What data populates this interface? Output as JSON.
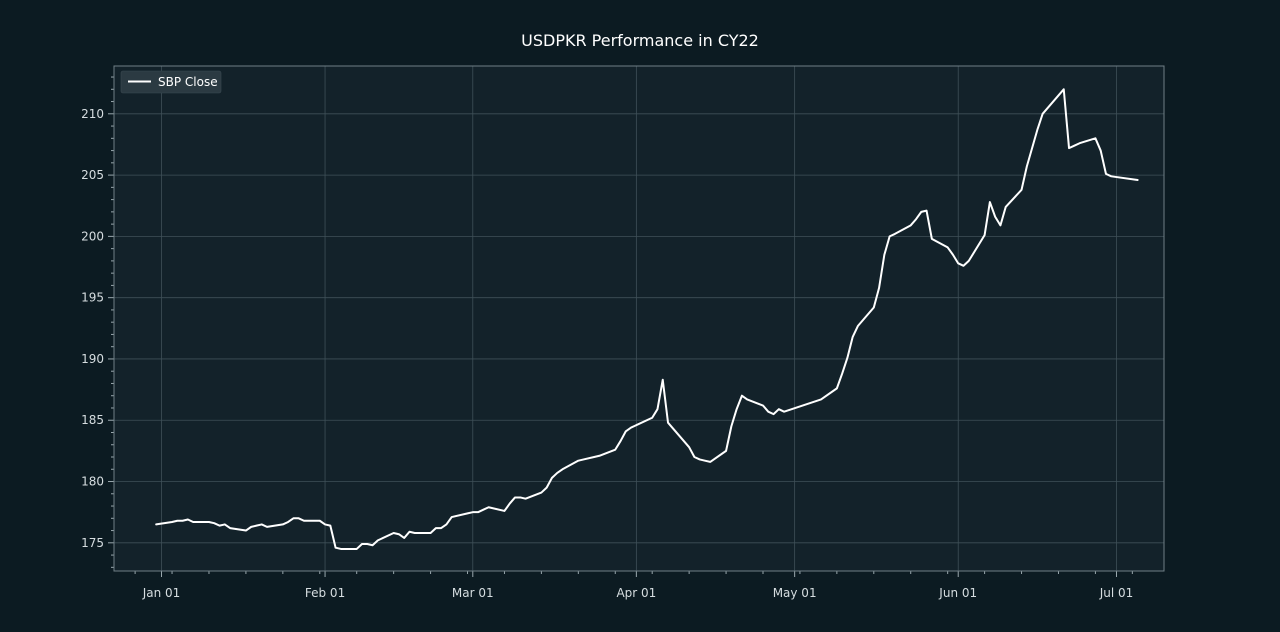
{
  "chart_data": {
    "type": "line",
    "title": "USDPKR Performance in CY22",
    "xlabel": "",
    "ylabel": "",
    "ylim": [
      172.7,
      213.9
    ],
    "x_range": [
      "2021-12-23",
      "2022-07-10"
    ],
    "grid": true,
    "legend_position": "top-left",
    "x_ticks": [
      {
        "date": "2022-01-01",
        "label": "Jan 01"
      },
      {
        "date": "2022-02-01",
        "label": "Feb 01"
      },
      {
        "date": "2022-03-01",
        "label": "Mar 01"
      },
      {
        "date": "2022-04-01",
        "label": "Apr 01"
      },
      {
        "date": "2022-05-01",
        "label": "May 01"
      },
      {
        "date": "2022-06-01",
        "label": "Jun 01"
      },
      {
        "date": "2022-07-01",
        "label": "Jul 01"
      }
    ],
    "y_ticks": [
      175,
      180,
      185,
      190,
      195,
      200,
      205,
      210
    ],
    "series": [
      {
        "name": "SBP Close",
        "color": "#ffffff",
        "x": [
          "2021-12-31",
          "2022-01-03",
          "2022-01-04",
          "2022-01-05",
          "2022-01-06",
          "2022-01-07",
          "2022-01-10",
          "2022-01-11",
          "2022-01-12",
          "2022-01-13",
          "2022-01-14",
          "2022-01-17",
          "2022-01-18",
          "2022-01-19",
          "2022-01-20",
          "2022-01-21",
          "2022-01-24",
          "2022-01-25",
          "2022-01-26",
          "2022-01-27",
          "2022-01-28",
          "2022-01-31",
          "2022-02-01",
          "2022-02-02",
          "2022-02-03",
          "2022-02-04",
          "2022-02-07",
          "2022-02-08",
          "2022-02-09",
          "2022-02-10",
          "2022-02-11",
          "2022-02-14",
          "2022-02-15",
          "2022-02-16",
          "2022-02-17",
          "2022-02-18",
          "2022-02-21",
          "2022-02-22",
          "2022-02-23",
          "2022-02-24",
          "2022-02-25",
          "2022-02-28",
          "2022-03-01",
          "2022-03-02",
          "2022-03-03",
          "2022-03-04",
          "2022-03-07",
          "2022-03-08",
          "2022-03-09",
          "2022-03-10",
          "2022-03-11",
          "2022-03-14",
          "2022-03-15",
          "2022-03-16",
          "2022-03-17",
          "2022-03-18",
          "2022-03-21",
          "2022-03-22",
          "2022-03-24",
          "2022-03-25",
          "2022-03-28",
          "2022-03-29",
          "2022-03-30",
          "2022-03-31",
          "2022-04-04",
          "2022-04-05",
          "2022-04-06",
          "2022-04-07",
          "2022-04-08",
          "2022-04-11",
          "2022-04-12",
          "2022-04-13",
          "2022-04-14",
          "2022-04-15",
          "2022-04-18",
          "2022-04-19",
          "2022-04-20",
          "2022-04-21",
          "2022-04-22",
          "2022-04-25",
          "2022-04-26",
          "2022-04-27",
          "2022-04-28",
          "2022-04-29",
          "2022-05-06",
          "2022-05-09",
          "2022-05-10",
          "2022-05-11",
          "2022-05-12",
          "2022-05-13",
          "2022-05-16",
          "2022-05-17",
          "2022-05-18",
          "2022-05-19",
          "2022-05-20",
          "2022-05-23",
          "2022-05-24",
          "2022-05-25",
          "2022-05-26",
          "2022-05-27",
          "2022-05-30",
          "2022-05-31",
          "2022-06-01",
          "2022-06-02",
          "2022-06-03",
          "2022-06-06",
          "2022-06-07",
          "2022-06-08",
          "2022-06-09",
          "2022-06-10",
          "2022-06-13",
          "2022-06-14",
          "2022-06-15",
          "2022-06-16",
          "2022-06-17",
          "2022-06-20",
          "2022-06-21",
          "2022-06-22",
          "2022-06-23",
          "2022-06-24",
          "2022-06-27",
          "2022-06-28",
          "2022-06-29",
          "2022-06-30",
          "2022-07-05"
        ],
        "values": [
          176.5,
          176.7,
          176.8,
          176.8,
          176.9,
          176.7,
          176.7,
          176.6,
          176.4,
          176.5,
          176.2,
          176.0,
          176.3,
          176.4,
          176.5,
          176.3,
          176.5,
          176.7,
          177.0,
          177.0,
          176.8,
          176.8,
          176.5,
          176.4,
          174.6,
          174.5,
          174.5,
          174.9,
          174.9,
          174.8,
          175.2,
          175.8,
          175.7,
          175.4,
          175.9,
          175.8,
          175.8,
          176.2,
          176.2,
          176.5,
          177.1,
          177.4,
          177.5,
          177.5,
          177.7,
          177.9,
          177.6,
          178.2,
          178.7,
          178.7,
          178.6,
          179.1,
          179.5,
          180.3,
          180.7,
          181.0,
          181.7,
          181.8,
          182.0,
          182.1,
          182.6,
          183.3,
          184.1,
          184.4,
          185.2,
          185.9,
          188.3,
          184.8,
          184.3,
          182.8,
          182.0,
          181.8,
          181.7,
          181.6,
          182.5,
          184.5,
          185.9,
          187.0,
          186.7,
          186.2,
          185.7,
          185.5,
          185.9,
          185.7,
          186.7,
          187.6,
          188.8,
          190.1,
          191.8,
          192.7,
          194.2,
          195.8,
          198.5,
          200.0,
          200.2,
          200.9,
          201.4,
          202.0,
          202.1,
          199.8,
          199.1,
          198.5,
          197.8,
          197.6,
          198.0,
          200.1,
          202.8,
          201.6,
          200.9,
          202.4,
          203.8,
          205.7,
          207.2,
          208.7,
          210.0,
          211.5,
          212.0,
          207.2,
          207.4,
          207.6,
          208.0,
          207.0,
          205.1,
          204.9,
          204.6
        ]
      }
    ]
  }
}
